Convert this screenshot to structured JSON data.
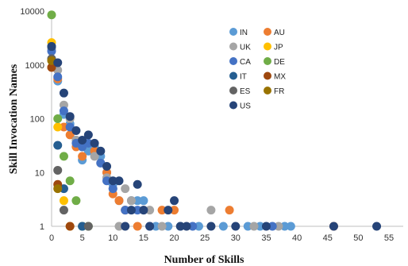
{
  "chart_data": {
    "type": "scatter",
    "title": "",
    "xlabel": "Number of Skills",
    "ylabel": "Skill Invocation Names",
    "xlim": [
      0,
      55
    ],
    "ylim": [
      1,
      10000
    ],
    "yscale": "log",
    "xticks": [
      0,
      5,
      10,
      15,
      20,
      25,
      30,
      35,
      40,
      45,
      50,
      55
    ],
    "yticks": [
      1,
      10,
      100,
      1000,
      10000
    ],
    "ytick_labels": [
      "1",
      "10",
      "100",
      "1000",
      "10000"
    ],
    "grid": false,
    "legend_position": "top-right",
    "legend_columns": 2,
    "series": [
      {
        "name": "IN",
        "color": "#5B9BD5",
        "points": [
          [
            0,
            1300
          ],
          [
            1,
            500
          ],
          [
            2,
            120
          ],
          [
            3,
            80
          ],
          [
            4,
            40
          ],
          [
            5,
            17
          ],
          [
            6,
            25
          ],
          [
            7,
            30
          ],
          [
            8,
            20
          ],
          [
            9,
            10
          ],
          [
            10,
            6
          ],
          [
            11,
            3
          ],
          [
            12,
            2
          ],
          [
            13,
            3
          ],
          [
            14,
            3
          ],
          [
            15,
            3
          ],
          [
            17,
            1
          ],
          [
            19,
            1
          ],
          [
            21,
            1
          ],
          [
            24,
            1
          ],
          [
            28,
            1
          ],
          [
            32,
            1
          ],
          [
            34,
            1
          ],
          [
            38,
            1
          ],
          [
            39,
            1
          ]
        ]
      },
      {
        "name": "AU",
        "color": "#ED7D31",
        "points": [
          [
            0,
            900
          ],
          [
            1,
            550
          ],
          [
            2,
            70
          ],
          [
            3,
            50
          ],
          [
            4,
            30
          ],
          [
            5,
            20
          ],
          [
            7,
            25
          ],
          [
            9,
            10
          ],
          [
            10,
            4
          ],
          [
            11,
            3
          ],
          [
            12,
            2
          ],
          [
            14,
            1
          ],
          [
            18,
            2
          ],
          [
            20,
            2
          ],
          [
            29,
            2
          ],
          [
            46,
            1
          ]
        ]
      },
      {
        "name": "UK",
        "color": "#A5A5A5",
        "points": [
          [
            0,
            2000
          ],
          [
            1,
            800
          ],
          [
            2,
            180
          ],
          [
            3,
            100
          ],
          [
            4,
            40
          ],
          [
            5,
            30
          ],
          [
            7,
            20
          ],
          [
            8,
            15
          ],
          [
            9,
            8
          ],
          [
            10,
            5
          ],
          [
            11,
            1
          ],
          [
            12,
            5
          ],
          [
            13,
            3
          ],
          [
            15,
            2
          ],
          [
            16,
            2
          ],
          [
            18,
            1
          ],
          [
            26,
            2
          ],
          [
            33,
            1
          ],
          [
            37,
            1
          ]
        ]
      },
      {
        "name": "JP",
        "color": "#FFC000",
        "points": [
          [
            0,
            2600
          ],
          [
            1,
            70
          ],
          [
            2,
            3
          ],
          [
            3,
            1
          ]
        ]
      },
      {
        "name": "CA",
        "color": "#4472C4",
        "points": [
          [
            0,
            1800
          ],
          [
            1,
            600
          ],
          [
            2,
            140
          ],
          [
            3,
            70
          ],
          [
            4,
            35
          ],
          [
            5,
            30
          ],
          [
            6,
            35
          ],
          [
            8,
            15
          ],
          [
            9,
            7
          ],
          [
            10,
            5
          ],
          [
            12,
            2
          ],
          [
            14,
            2
          ],
          [
            16,
            1
          ],
          [
            23,
            1
          ],
          [
            36,
            1
          ]
        ]
      },
      {
        "name": "DE",
        "color": "#70AD47",
        "points": [
          [
            0,
            8500
          ],
          [
            1,
            100
          ],
          [
            2,
            20
          ],
          [
            3,
            7
          ],
          [
            4,
            3
          ],
          [
            5,
            1
          ],
          [
            6,
            1
          ]
        ]
      },
      {
        "name": "IT",
        "color": "#255E91",
        "points": [
          [
            0,
            2200
          ],
          [
            1,
            32
          ],
          [
            2,
            5
          ],
          [
            5,
            1
          ]
        ]
      },
      {
        "name": "MX",
        "color": "#9E480E",
        "points": [
          [
            0,
            900
          ],
          [
            1,
            6
          ],
          [
            3,
            1
          ]
        ]
      },
      {
        "name": "ES",
        "color": "#636363",
        "points": [
          [
            0,
            1300
          ],
          [
            1,
            11
          ],
          [
            2,
            2
          ],
          [
            6,
            1
          ]
        ]
      },
      {
        "name": "FR",
        "color": "#997300",
        "points": [
          [
            0,
            1200
          ],
          [
            1,
            5
          ]
        ]
      },
      {
        "name": "US",
        "color": "#264478",
        "points": [
          [
            0,
            2200
          ],
          [
            1,
            1100
          ],
          [
            2,
            300
          ],
          [
            3,
            110
          ],
          [
            4,
            60
          ],
          [
            5,
            40
          ],
          [
            6,
            50
          ],
          [
            7,
            35
          ],
          [
            8,
            25
          ],
          [
            9,
            13
          ],
          [
            10,
            7
          ],
          [
            11,
            7
          ],
          [
            12,
            1
          ],
          [
            13,
            2
          ],
          [
            14,
            6
          ],
          [
            15,
            2
          ],
          [
            16,
            1
          ],
          [
            19,
            2
          ],
          [
            20,
            3
          ],
          [
            21,
            1
          ],
          [
            22,
            1
          ],
          [
            26,
            1
          ],
          [
            30,
            1
          ],
          [
            35,
            1
          ],
          [
            46,
            1
          ],
          [
            53,
            1
          ]
        ]
      }
    ]
  }
}
